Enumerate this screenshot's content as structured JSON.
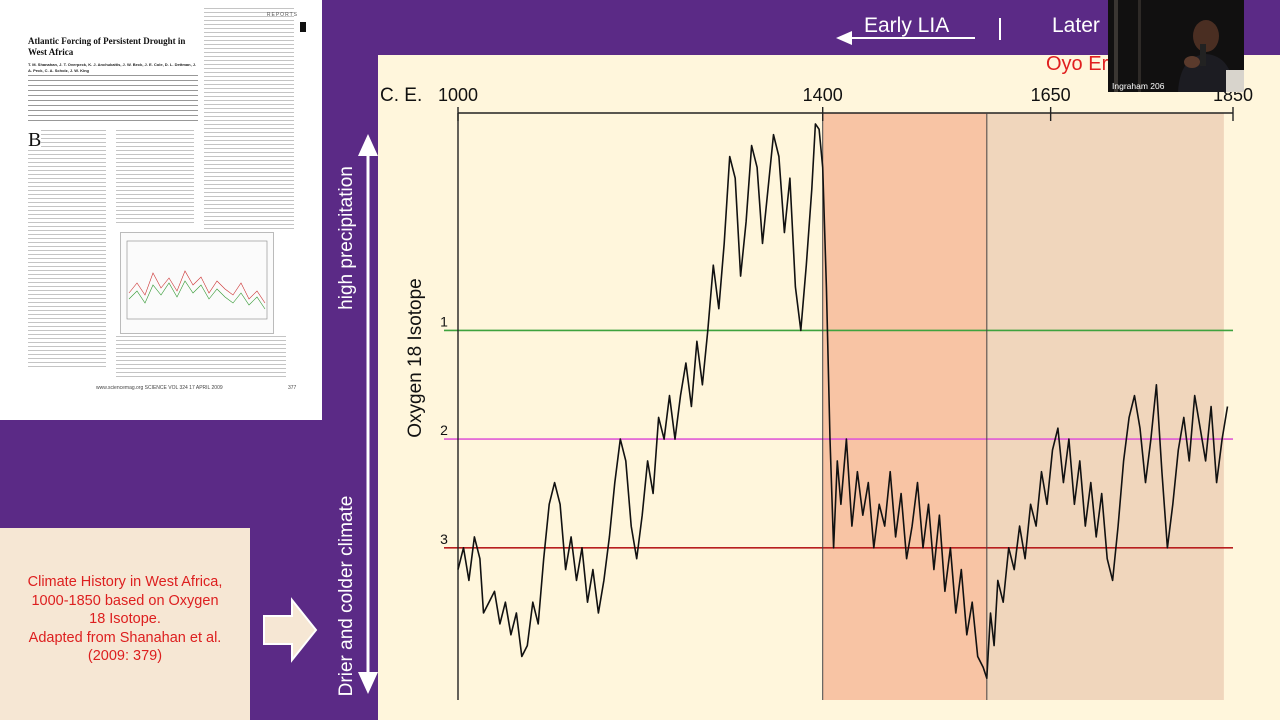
{
  "paper": {
    "section": "REPORTS",
    "title": "Atlantic Forcing of Persistent Drought in West Africa",
    "authors": "T. M. Shanahan, J. T. Overpeck, K. J. Anchukaitis, J. W. Beck, J. E. Cole, D. L. Dettman, J. A. Peck, C. A. Scholz, J. W. King",
    "dropcap": "B",
    "footer": "www.sciencemag.org   SCIENCE   VOL 324   17 APRIL 2009",
    "page": "377"
  },
  "caption": {
    "text": "Climate History in West Africa,\n1000-1850 based on Oxygen\n18 Isotope.\nAdapted from Shanahan et al.\n(2009: 379)"
  },
  "side_labels": {
    "top": "high precipitation",
    "bottom": "Drier and colder climate"
  },
  "top_labels": {
    "early": "Early LIA",
    "later": "Later",
    "oyo": "Oyo Er"
  },
  "speaker": {
    "name": "Ingraham 206"
  },
  "colors": {
    "background": "#5b2a86",
    "chart_bg": "#fff6dc",
    "band1": "#f8c4a4",
    "band2": "#f0d6bc",
    "line1": "#3ea23e",
    "line2": "#e05ad6",
    "line3": "#b81f1f",
    "caption_red": "#dd1f1f"
  },
  "chart_data": {
    "type": "line",
    "x_unit_label": "C. E.",
    "ylabel": "Oxygen 18 Isotope",
    "x_ticks": [
      {
        "value": 1000,
        "label": "1000"
      },
      {
        "value": 1400,
        "label": "1400"
      },
      {
        "value": 1650,
        "label": "1650"
      },
      {
        "value": 1850,
        "label": "1850"
      }
    ],
    "y_ticks": [
      {
        "value": 1,
        "label": "1",
        "color": "#3ea23e"
      },
      {
        "value": 2,
        "label": "2",
        "color": "#e05ad6"
      },
      {
        "value": 3,
        "label": "3",
        "color": "#b81f1f"
      }
    ],
    "xlim": [
      1000,
      1850
    ],
    "ylim": [
      4.4,
      -1.0
    ],
    "y_inverted": true,
    "bands": [
      {
        "from": 1400,
        "to": 1580,
        "color": "#f8c4a4"
      },
      {
        "from": 1580,
        "to": 1840,
        "color": "#f0d6bc"
      }
    ],
    "series": [
      {
        "color": "#111111",
        "x": [
          1000,
          1006,
          1012,
          1018,
          1024,
          1028,
          1034,
          1040,
          1046,
          1052,
          1058,
          1064,
          1070,
          1076,
          1082,
          1088,
          1094,
          1100,
          1106,
          1112,
          1118,
          1124,
          1130,
          1136,
          1142,
          1148,
          1154,
          1160,
          1166,
          1172,
          1178,
          1184,
          1190,
          1196,
          1202,
          1208,
          1214,
          1220,
          1226,
          1232,
          1238,
          1244,
          1250,
          1256,
          1262,
          1268,
          1274,
          1280,
          1286,
          1292,
          1298,
          1304,
          1310,
          1316,
          1322,
          1328,
          1334,
          1340,
          1346,
          1352,
          1358,
          1364,
          1370,
          1376,
          1382,
          1388,
          1392,
          1396,
          1400,
          1404,
          1408,
          1412,
          1416,
          1420,
          1426,
          1432,
          1438,
          1444,
          1450,
          1456,
          1462,
          1468,
          1474,
          1480,
          1486,
          1492,
          1498,
          1504,
          1510,
          1516,
          1522,
          1528,
          1534,
          1540,
          1546,
          1552,
          1558,
          1564,
          1570,
          1576,
          1580,
          1584,
          1588,
          1592,
          1598,
          1604,
          1610,
          1616,
          1622,
          1628,
          1634,
          1640,
          1646,
          1652,
          1658,
          1664,
          1670,
          1676,
          1682,
          1688,
          1694,
          1700,
          1706,
          1712,
          1718,
          1724,
          1730,
          1736,
          1742,
          1748,
          1754,
          1760,
          1766,
          1772,
          1778,
          1784,
          1790,
          1796,
          1802,
          1808,
          1814,
          1820,
          1826,
          1832,
          1838,
          1844
        ],
        "y": [
          3.2,
          3.0,
          3.3,
          2.9,
          3.1,
          3.6,
          3.5,
          3.4,
          3.7,
          3.5,
          3.8,
          3.6,
          4.0,
          3.9,
          3.5,
          3.7,
          3.1,
          2.6,
          2.4,
          2.6,
          3.2,
          2.9,
          3.3,
          3.0,
          3.5,
          3.2,
          3.6,
          3.3,
          2.9,
          2.4,
          2.0,
          2.2,
          2.8,
          3.1,
          2.7,
          2.2,
          2.5,
          1.8,
          2.0,
          1.6,
          2.0,
          1.6,
          1.3,
          1.7,
          1.1,
          1.5,
          1.0,
          0.4,
          0.8,
          0.2,
          -0.6,
          -0.4,
          0.5,
          0.0,
          -0.7,
          -0.5,
          0.2,
          -0.3,
          -0.8,
          -0.6,
          0.1,
          -0.4,
          0.6,
          1.0,
          0.4,
          -0.3,
          -0.9,
          -0.85,
          -0.5,
          0.6,
          2.0,
          3.0,
          2.2,
          2.6,
          2.0,
          2.8,
          2.3,
          2.7,
          2.4,
          3.0,
          2.6,
          2.8,
          2.3,
          2.9,
          2.5,
          3.1,
          2.8,
          2.4,
          3.0,
          2.6,
          3.2,
          2.7,
          3.4,
          3.0,
          3.6,
          3.2,
          3.8,
          3.5,
          4.0,
          4.1,
          4.2,
          3.6,
          3.9,
          3.3,
          3.5,
          3.0,
          3.2,
          2.8,
          3.1,
          2.6,
          2.8,
          2.3,
          2.6,
          2.1,
          1.9,
          2.4,
          2.0,
          2.6,
          2.2,
          2.8,
          2.4,
          2.9,
          2.5,
          3.1,
          3.3,
          2.8,
          2.2,
          1.8,
          1.6,
          1.9,
          2.4,
          2.0,
          1.5,
          2.3,
          3.0,
          2.6,
          2.1,
          1.8,
          2.2,
          1.6,
          1.9,
          2.2,
          1.7,
          2.4,
          2.0,
          1.7
        ]
      }
    ]
  }
}
